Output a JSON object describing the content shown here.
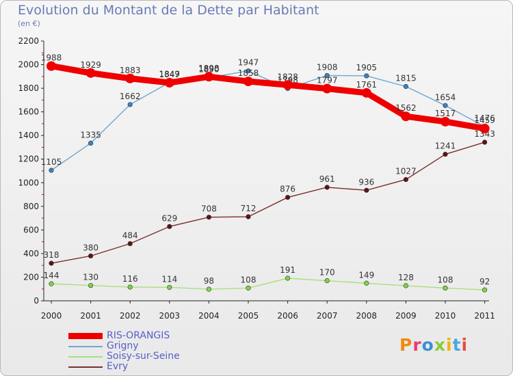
{
  "title": "Evolution du Montant de la Dette par Habitant",
  "subtitle": "(en €)",
  "logo_text": "Proxiti",
  "chart_data": {
    "type": "line",
    "title": "Evolution du Montant de la Dette par Habitant",
    "ylabel": "(en €)",
    "xlabel": "",
    "ylim": [
      0,
      2200
    ],
    "yticks": [
      0,
      200,
      400,
      600,
      800,
      1000,
      1200,
      1400,
      1600,
      1800,
      2000,
      2200
    ],
    "categories": [
      "2000",
      "2001",
      "2002",
      "2003",
      "2004",
      "2005",
      "2006",
      "2007",
      "2008",
      "2009",
      "2010",
      "2011"
    ],
    "grid": false,
    "legend_position": "bottom-left",
    "series": [
      {
        "name": "RIS-ORANGIS",
        "color": "#ee0000",
        "emphasis": true,
        "values": [
          1988,
          1929,
          1883,
          1847,
          1898,
          1858,
          1828,
          1797,
          1761,
          1562,
          1517,
          1459
        ]
      },
      {
        "name": "Grigny",
        "color": "#6fa6cf",
        "marker": "#3b83c2",
        "values": [
          1105,
          1335,
          1662,
          1849,
          1890,
          1947,
          1798,
          1908,
          1905,
          1815,
          1654,
          1476
        ]
      },
      {
        "name": "Soisy-sur-Seine",
        "color": "#a6e07a",
        "marker": "#7dd446",
        "values": [
          144,
          130,
          116,
          114,
          98,
          108,
          191,
          170,
          149,
          128,
          108,
          92
        ]
      },
      {
        "name": "Evry",
        "color": "#7a2e2e",
        "marker": "#5e1414",
        "values": [
          318,
          380,
          484,
          629,
          708,
          712,
          876,
          961,
          936,
          1027,
          1241,
          1343
        ]
      }
    ]
  }
}
